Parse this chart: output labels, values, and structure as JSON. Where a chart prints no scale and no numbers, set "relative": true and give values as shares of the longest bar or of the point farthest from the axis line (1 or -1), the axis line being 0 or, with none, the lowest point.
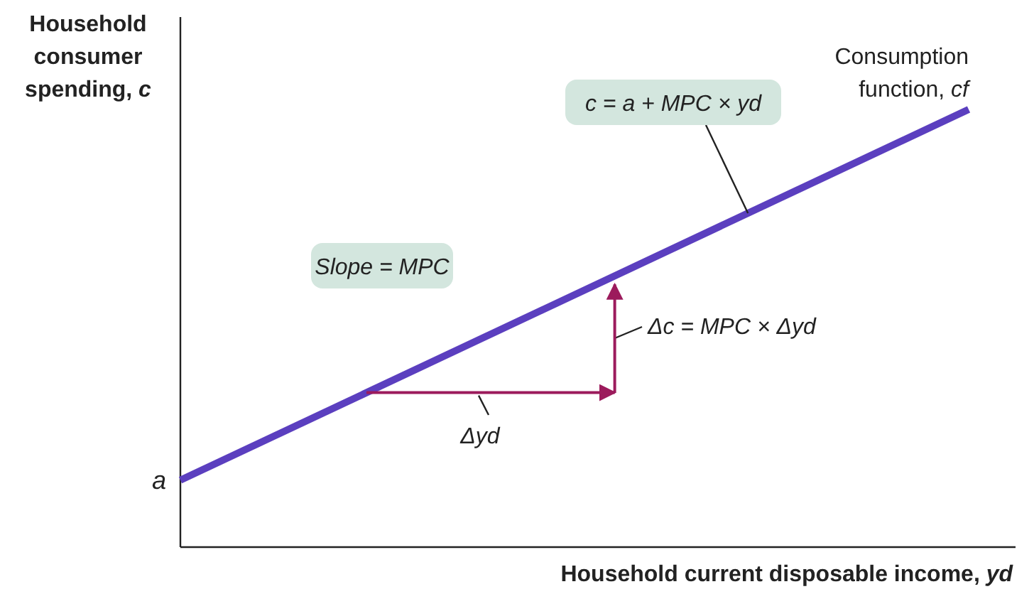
{
  "chart_data": {
    "type": "line",
    "relative": true,
    "xlabel": "Household current disposable income, yd",
    "ylabel": "Household consumer spending, c",
    "categories": [
      null,
      null
    ],
    "series": [
      {
        "name": "Consumption function, cf",
        "color": "#5b3fbf",
        "values": [
          0.153,
          1
        ]
      }
    ],
    "annotations": [
      "c = a + MPC × yd",
      "Slope = MPC",
      "Δc = MPC × Δyd",
      "Δyd",
      "a"
    ],
    "line_style": "solid"
  }
}
